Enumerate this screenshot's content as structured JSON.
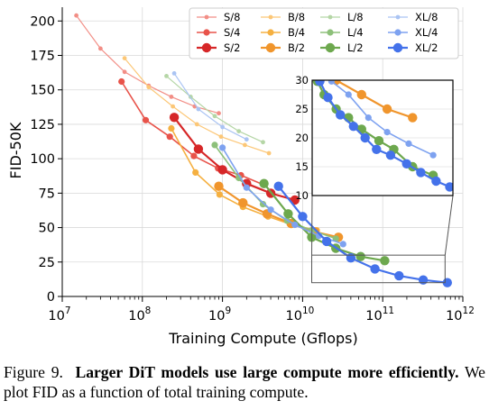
{
  "chart_data": {
    "type": "line",
    "xlabel": "Training Compute (Gflops)",
    "ylabel": "FID-50K",
    "xscale": "log",
    "xlim": [
      10000000,
      1000000000000
    ],
    "ylim": [
      0,
      210
    ],
    "x_ticks": [
      {
        "value": 10000000,
        "base": "10",
        "exp": "7"
      },
      {
        "value": 100000000,
        "base": "10",
        "exp": "8"
      },
      {
        "value": 1000000000,
        "base": "10",
        "exp": "9"
      },
      {
        "value": 10000000000,
        "base": "10",
        "exp": "10"
      },
      {
        "value": 100000000000,
        "base": "10",
        "exp": "11"
      },
      {
        "value": 1000000000000,
        "base": "10",
        "exp": "12"
      }
    ],
    "y_ticks": [
      0,
      25,
      50,
      75,
      100,
      125,
      150,
      175,
      200
    ],
    "grid": true,
    "legend_position": "top-right",
    "series": [
      {
        "name": "S/8",
        "color": "#f28e86",
        "size": "small",
        "points": [
          [
            15000000,
            204
          ],
          [
            30000000,
            180
          ],
          [
            60000000,
            163
          ],
          [
            120000000,
            153
          ],
          [
            230000000,
            145
          ],
          [
            450000000,
            138
          ],
          [
            900000000,
            133
          ]
        ]
      },
      {
        "name": "S/4",
        "color": "#e8534a",
        "size": "medium",
        "points": [
          [
            55000000,
            156
          ],
          [
            110000000,
            128
          ],
          [
            220000000,
            116
          ],
          [
            440000000,
            102
          ],
          [
            880000000,
            93
          ],
          [
            1700000000,
            88
          ],
          [
            3300000000,
            81
          ]
        ]
      },
      {
        "name": "S/2",
        "color": "#d62728",
        "size": "large",
        "points": [
          [
            250000000,
            130
          ],
          [
            500000000,
            107
          ],
          [
            1000000000,
            92
          ],
          [
            2000000000,
            82
          ],
          [
            4000000000,
            75
          ],
          [
            8000000000,
            70
          ]
        ]
      },
      {
        "name": "B/8",
        "color": "#fcc777",
        "size": "small",
        "points": [
          [
            60000000,
            173
          ],
          [
            120000000,
            152
          ],
          [
            240000000,
            138
          ],
          [
            480000000,
            125
          ],
          [
            960000000,
            116
          ],
          [
            1900000000,
            110
          ],
          [
            3800000000,
            104
          ]
        ]
      },
      {
        "name": "B/4",
        "color": "#f5b041",
        "size": "medium",
        "points": [
          [
            230000000,
            122
          ],
          [
            460000000,
            90
          ],
          [
            920000000,
            74
          ],
          [
            1800000000,
            65
          ],
          [
            3700000000,
            58
          ],
          [
            7400000000,
            52
          ],
          [
            15000000000,
            48
          ]
        ]
      },
      {
        "name": "B/2",
        "color": "#f0952c",
        "size": "large",
        "points": [
          [
            900000000,
            80
          ],
          [
            1800000000,
            68
          ],
          [
            3600000000,
            60
          ],
          [
            7200000000,
            53
          ],
          [
            14000000000,
            47
          ],
          [
            28000000000,
            43
          ]
        ]
      },
      {
        "name": "L/8",
        "color": "#b5d6a6",
        "size": "small",
        "points": [
          [
            200000000,
            160
          ],
          [
            400000000,
            145
          ],
          [
            800000000,
            131
          ],
          [
            1600000000,
            120
          ],
          [
            3200000000,
            112
          ]
        ]
      },
      {
        "name": "L/4",
        "color": "#8dc07a",
        "size": "medium",
        "points": [
          [
            800000000,
            110
          ],
          [
            1600000000,
            86
          ],
          [
            3200000000,
            67
          ],
          [
            6400000000,
            55
          ],
          [
            13000000000,
            48
          ],
          [
            26000000000,
            42
          ]
        ]
      },
      {
        "name": "L/2",
        "color": "#6da84e",
        "size": "large",
        "points": [
          [
            3300000000,
            82
          ],
          [
            6600000000,
            60
          ],
          [
            13000000000,
            43
          ],
          [
            26000000000,
            35
          ],
          [
            53000000000,
            29
          ],
          [
            106000000000,
            26
          ]
        ]
      },
      {
        "name": "XL/8",
        "color": "#aac4f3",
        "size": "small",
        "points": [
          [
            250000000,
            162
          ],
          [
            500000000,
            136
          ],
          [
            1000000000,
            123
          ],
          [
            2000000000,
            114
          ]
        ]
      },
      {
        "name": "XL/4",
        "color": "#7ea2f0",
        "size": "medium",
        "points": [
          [
            1000000000,
            108
          ],
          [
            2000000000,
            79
          ],
          [
            4000000000,
            63
          ],
          [
            8000000000,
            52
          ],
          [
            16000000000,
            44
          ],
          [
            32000000000,
            38
          ]
        ]
      },
      {
        "name": "XL/2",
        "color": "#4472ea",
        "size": "large",
        "points": [
          [
            5000000000,
            80
          ],
          [
            10000000000,
            58
          ],
          [
            20000000000,
            40
          ],
          [
            40000000000,
            28
          ],
          [
            80000000000,
            20
          ],
          [
            160000000000,
            15
          ],
          [
            320000000000,
            12
          ],
          [
            640000000000,
            10
          ]
        ]
      }
    ],
    "inset": {
      "xlim": [
        13000000000,
        600000000000
      ],
      "ylim": [
        10,
        30
      ],
      "y_ticks": [
        10,
        15,
        20,
        25,
        30
      ],
      "series": [
        {
          "name": "B/2",
          "color": "#f0952c",
          "size": "large",
          "points": [
            [
              25000000000,
              30
            ],
            [
              50000000000,
              27.5
            ],
            [
              100000000000,
              25
            ],
            [
              200000000000,
              23.5
            ]
          ]
        },
        {
          "name": "L/2",
          "color": "#6da84e",
          "size": "large",
          "points": [
            [
              15000000000,
              29.8
            ],
            [
              18000000000,
              27.5
            ],
            [
              25000000000,
              25
            ],
            [
              35000000000,
              23.5
            ],
            [
              50000000000,
              21.5
            ],
            [
              80000000000,
              19.5
            ],
            [
              120000000000,
              18
            ],
            [
              200000000000,
              15
            ],
            [
              350000000000,
              13.5
            ]
          ]
        },
        {
          "name": "XL/4",
          "color": "#7ea2f0",
          "size": "medium",
          "points": [
            [
              22000000000,
              29.8
            ],
            [
              35000000000,
              27.5
            ],
            [
              60000000000,
              23.5
            ],
            [
              100000000000,
              21
            ],
            [
              180000000000,
              19
            ],
            [
              350000000000,
              17
            ]
          ]
        },
        {
          "name": "XL/2",
          "color": "#4472ea",
          "size": "large",
          "points": [
            [
              16000000000,
              29.8
            ],
            [
              20000000000,
              27
            ],
            [
              28000000000,
              24
            ],
            [
              40000000000,
              22
            ],
            [
              55000000000,
              20
            ],
            [
              75000000000,
              18
            ],
            [
              110000000000,
              17
            ],
            [
              170000000000,
              15.5
            ],
            [
              250000000000,
              14
            ],
            [
              380000000000,
              12.5
            ],
            [
              550000000000,
              11.5
            ]
          ]
        }
      ]
    }
  },
  "caption": {
    "figure_label": "Figure 9.",
    "bold_text": "Larger DiT models use large compute more efficiently.",
    "rest_text": "We plot FID as a function of total training compute."
  }
}
